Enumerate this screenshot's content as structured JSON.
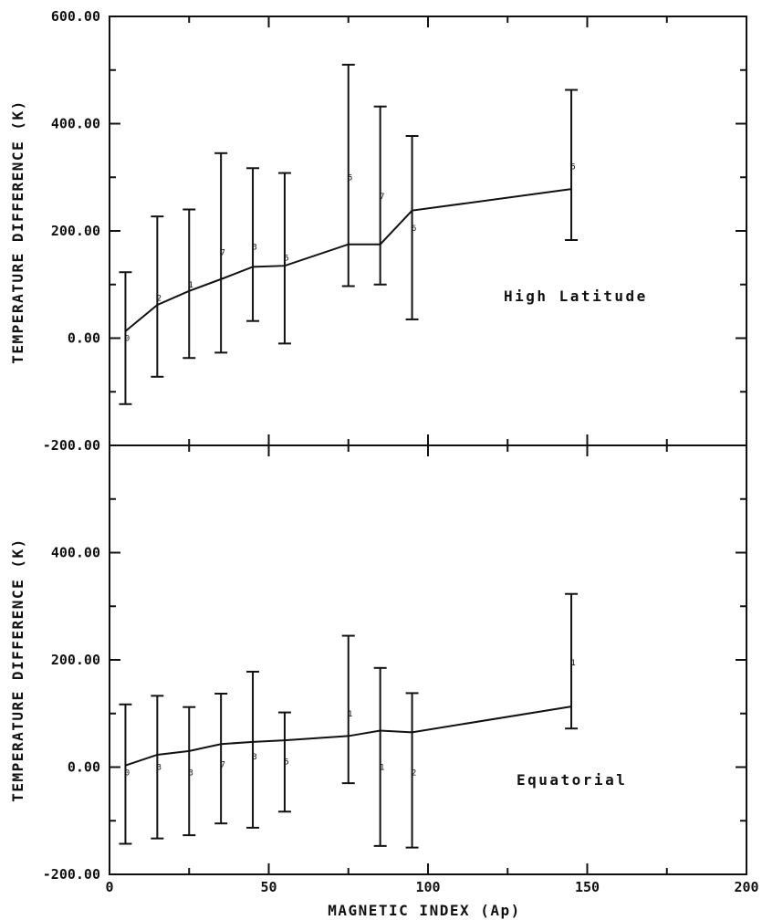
{
  "chart_data": [
    {
      "type": "line",
      "xlabel": "",
      "ylabel": "TEMPERATURE DIFFERENCE (K)",
      "panel_label": "High Latitude",
      "xlim": [
        0,
        200
      ],
      "ylim": [
        -200,
        600
      ],
      "y_tick_values": [
        -200,
        0,
        200,
        400,
        600
      ],
      "y_tick_labels": [
        "-200.00",
        "0.00",
        "200.00",
        "400.00",
        "600.00"
      ],
      "x": [
        5,
        15,
        25,
        35,
        45,
        55,
        75,
        85,
        95,
        145
      ],
      "y": [
        13,
        62,
        88,
        110,
        133,
        135,
        175,
        175,
        238,
        278
      ],
      "error_low": [
        -123,
        -72,
        -37,
        -27,
        32,
        -10,
        97,
        100,
        35,
        183
      ],
      "error_high": [
        123,
        227,
        240,
        345,
        317,
        308,
        510,
        432,
        377,
        463
      ],
      "point_labels": [
        "0",
        "2",
        "1",
        "7",
        "3",
        "5",
        "5",
        "7",
        "6",
        "5"
      ],
      "point_label_y": [
        0,
        75,
        100,
        160,
        170,
        150,
        300,
        265,
        205,
        320
      ]
    },
    {
      "type": "line",
      "xlabel": "MAGNETIC INDEX (Ap)",
      "ylabel": "TEMPERATURE DIFFERENCE (K)",
      "panel_label": "Equatorial",
      "xlim": [
        0,
        200
      ],
      "ylim": [
        -200,
        600
      ],
      "x_tick_values": [
        0,
        50,
        100,
        150,
        200
      ],
      "x_tick_labels": [
        "0",
        "50",
        "100",
        "150",
        "200"
      ],
      "y_tick_values": [
        -200,
        0,
        200,
        400
      ],
      "y_tick_labels": [
        "-200.00",
        "0.00",
        "200.00",
        "400.00"
      ],
      "x": [
        5,
        15,
        25,
        35,
        45,
        55,
        75,
        85,
        95,
        145
      ],
      "y": [
        3,
        23,
        30,
        43,
        47,
        50,
        58,
        68,
        65,
        113
      ],
      "error_low": [
        -143,
        -133,
        -127,
        -105,
        -113,
        -83,
        -30,
        -147,
        -150,
        72
      ],
      "error_high": [
        117,
        133,
        112,
        137,
        178,
        102,
        245,
        185,
        138,
        323
      ],
      "point_labels": [
        "0",
        "3",
        "3",
        "7",
        "3",
        "5",
        "1",
        "1",
        "2",
        "1"
      ],
      "point_label_y": [
        -10,
        0,
        -10,
        5,
        20,
        10,
        100,
        0,
        -10,
        195
      ]
    }
  ]
}
